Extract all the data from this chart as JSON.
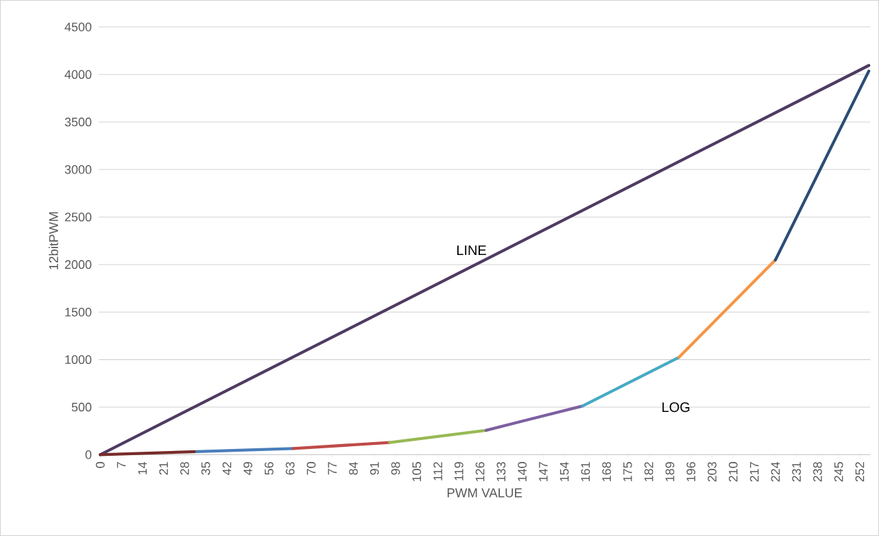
{
  "chart_data": {
    "type": "line",
    "xlabel": "PWM VALUE",
    "ylabel": "12bitPWM",
    "xlim": [
      -0.5,
      255.5
    ],
    "ylim": [
      0,
      4500
    ],
    "xticks": [
      0,
      7,
      14,
      21,
      28,
      35,
      42,
      49,
      56,
      63,
      70,
      77,
      84,
      91,
      98,
      105,
      112,
      119,
      126,
      133,
      140,
      147,
      154,
      161,
      168,
      175,
      182,
      189,
      196,
      203,
      210,
      217,
      224,
      231,
      238,
      245,
      252
    ],
    "yticks": [
      0,
      500,
      1000,
      1500,
      2000,
      2500,
      3000,
      3500,
      4000,
      4500
    ],
    "grid": "y",
    "marker": "none",
    "line_style": "solid",
    "series": [
      {
        "color": "#4f3b62",
        "x": [
          0,
          255
        ],
        "values": [
          0,
          4095
        ]
      },
      {
        "color": "#772c2a",
        "x": [
          0,
          32
        ],
        "values": [
          0,
          32
        ]
      },
      {
        "color": "#4a7ebb",
        "x": [
          32,
          64
        ],
        "values": [
          32,
          64
        ]
      },
      {
        "color": "#be4b48",
        "x": [
          64,
          96
        ],
        "values": [
          64,
          128
        ]
      },
      {
        "color": "#98b954",
        "x": [
          96,
          128
        ],
        "values": [
          128,
          256
        ]
      },
      {
        "color": "#7d60a0",
        "x": [
          128,
          160
        ],
        "values": [
          256,
          512
        ]
      },
      {
        "color": "#46aac5",
        "x": [
          160,
          192
        ],
        "values": [
          512,
          1024
        ]
      },
      {
        "color": "#f69544",
        "x": [
          192,
          224
        ],
        "values": [
          1024,
          2048
        ]
      },
      {
        "color": "#2c4d75",
        "x": [
          224,
          255
        ],
        "values": [
          2048,
          4036
        ]
      }
    ],
    "annotations": [
      "LINE",
      "LOG"
    ]
  }
}
